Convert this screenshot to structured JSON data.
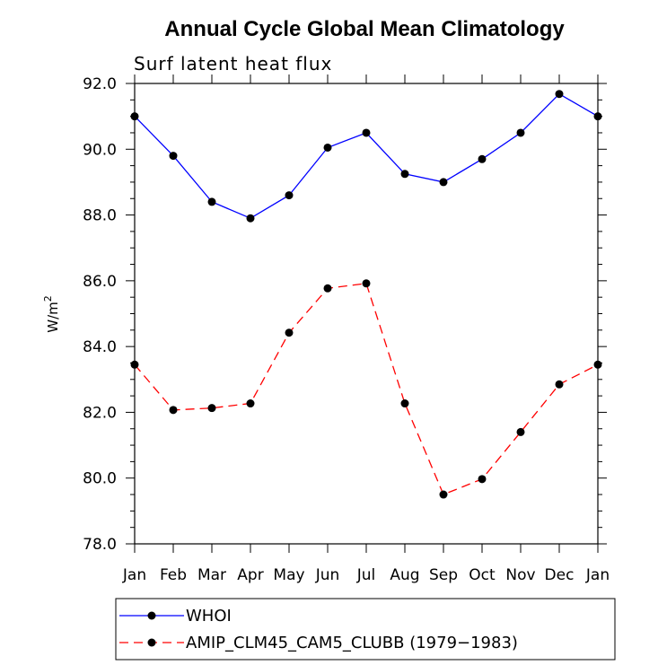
{
  "chart_data": {
    "type": "line",
    "title": "Annual Cycle Global Mean Climatology",
    "subtitle": "Surf latent heat flux",
    "ylabel": "W/m",
    "ylabel_sup": "2",
    "xlabel": "",
    "categories": [
      "Jan",
      "Feb",
      "Mar",
      "Apr",
      "May",
      "Jun",
      "Jul",
      "Aug",
      "Sep",
      "Oct",
      "Nov",
      "Dec",
      "Jan"
    ],
    "ylim": [
      78.0,
      92.0
    ],
    "yticks": [
      "78.0",
      "80.0",
      "82.0",
      "84.0",
      "86.0",
      "88.0",
      "90.0",
      "92.0"
    ],
    "grid": false,
    "legend_position": "bottom",
    "series": [
      {
        "name": "WHOI",
        "color": "#0000ff",
        "dash": "solid",
        "marker": "filled-circle",
        "values": [
          91.0,
          89.8,
          88.4,
          87.9,
          88.6,
          90.05,
          90.5,
          89.25,
          89.0,
          89.7,
          90.5,
          91.68,
          91.0
        ]
      },
      {
        "name": "AMIP_CLM45_CAM5_CLUBB (1979−1983)",
        "color": "#ff0000",
        "dash": "dashed",
        "marker": "filled-circle",
        "values": [
          83.45,
          82.07,
          82.13,
          82.27,
          84.42,
          85.77,
          85.92,
          82.27,
          79.5,
          79.97,
          81.4,
          82.85,
          83.45
        ]
      }
    ]
  }
}
